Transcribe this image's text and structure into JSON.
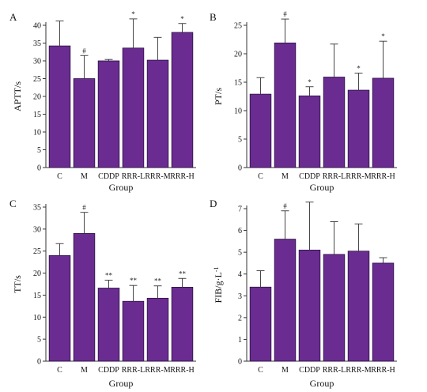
{
  "chart_data": [
    {
      "panel": "A",
      "type": "bar",
      "xlabel": "Group",
      "ylabel": "APTT/s",
      "ylim": [
        0,
        40
      ],
      "yticks": [
        0,
        5,
        10,
        15,
        20,
        25,
        30,
        35,
        40
      ],
      "categories": [
        "C",
        "M",
        "CDDP",
        "RRR-L",
        "RRR-M",
        "RRR-H"
      ],
      "values": [
        34.2,
        25.0,
        30.0,
        33.6,
        30.2,
        38.0
      ],
      "errors": [
        7.0,
        6.5,
        0.4,
        8.2,
        6.4,
        2.5
      ],
      "sig": [
        "",
        "#",
        "",
        "*",
        "",
        "*"
      ]
    },
    {
      "panel": "B",
      "type": "bar",
      "xlabel": "Group",
      "ylabel": "PT/s",
      "ylim": [
        0,
        25
      ],
      "yticks": [
        0,
        5,
        10,
        15,
        20,
        25
      ],
      "categories": [
        "C",
        "M",
        "CDDP",
        "RRR-L",
        "RRR-M",
        "RRR-H"
      ],
      "values": [
        12.9,
        21.9,
        12.6,
        15.9,
        13.6,
        15.7
      ],
      "errors": [
        2.9,
        4.2,
        1.6,
        5.8,
        3.0,
        6.5
      ],
      "sig": [
        "",
        "#",
        "*",
        "",
        "*",
        "*"
      ]
    },
    {
      "panel": "C",
      "type": "bar",
      "xlabel": "Group",
      "ylabel": "TT/s",
      "ylim": [
        0,
        35
      ],
      "yticks": [
        0,
        5,
        10,
        15,
        20,
        25,
        30,
        35
      ],
      "categories": [
        "C",
        "M",
        "CDDP",
        "RRR-L",
        "RRR-M",
        "RRR-H"
      ],
      "values": [
        24.0,
        29.0,
        16.6,
        13.6,
        14.3,
        16.8
      ],
      "errors": [
        2.7,
        4.8,
        1.8,
        3.6,
        2.8,
        2.0
      ],
      "sig": [
        "",
        "#",
        "**",
        "**",
        "**",
        "**"
      ]
    },
    {
      "panel": "D",
      "type": "bar",
      "xlabel": "Group",
      "ylabel": "FIB/g·L",
      "ylabel_sup": "-1",
      "ylim": [
        0,
        7
      ],
      "yticks": [
        0,
        1,
        2,
        3,
        4,
        5,
        6,
        7
      ],
      "categories": [
        "C",
        "M",
        "CDDP",
        "RRR-L",
        "RRR-M",
        "RRR-H"
      ],
      "values": [
        3.4,
        5.6,
        5.1,
        4.9,
        5.05,
        4.5
      ],
      "errors": [
        0.75,
        1.3,
        2.2,
        1.5,
        1.25,
        0.25
      ],
      "sig": [
        "",
        "#",
        "",
        "",
        "",
        ""
      ]
    }
  ],
  "colors": {
    "bar_fill": "#6a2c91",
    "bar_stroke": "#2a1040",
    "axis": "#333333"
  }
}
